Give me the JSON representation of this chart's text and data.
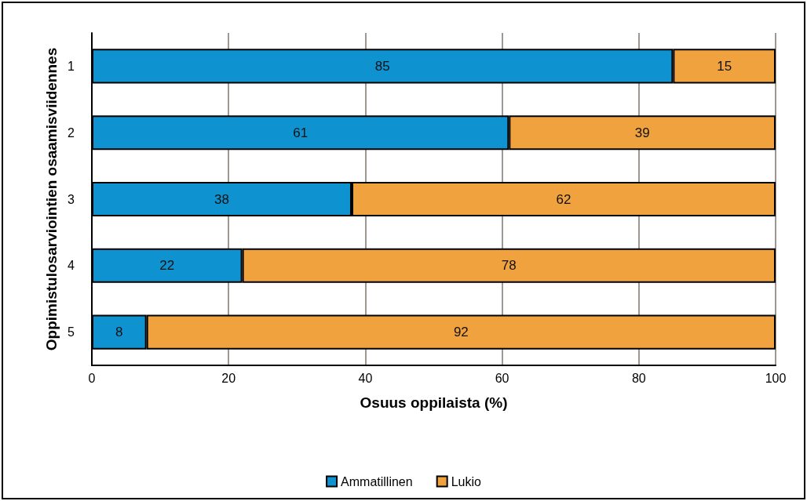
{
  "chart_data": {
    "type": "bar",
    "orientation": "horizontal",
    "stacked": true,
    "categories": [
      "1",
      "2",
      "3",
      "4",
      "5"
    ],
    "series": [
      {
        "name": "Ammatillinen",
        "color": "#0f92d0",
        "values": [
          85,
          61,
          38,
          22,
          8
        ]
      },
      {
        "name": "Lukio",
        "color": "#f0a23e",
        "values": [
          15,
          39,
          62,
          78,
          92
        ]
      }
    ],
    "xlabel": "Osuus oppilaista (%)",
    "ylabel": "Oppimistulosarviointien osaamisviidennes",
    "xlim": [
      0,
      100
    ],
    "xticks": [
      0,
      20,
      40,
      60,
      80,
      100
    ],
    "grid": "x",
    "legend": "bottom",
    "data_labels": true
  }
}
